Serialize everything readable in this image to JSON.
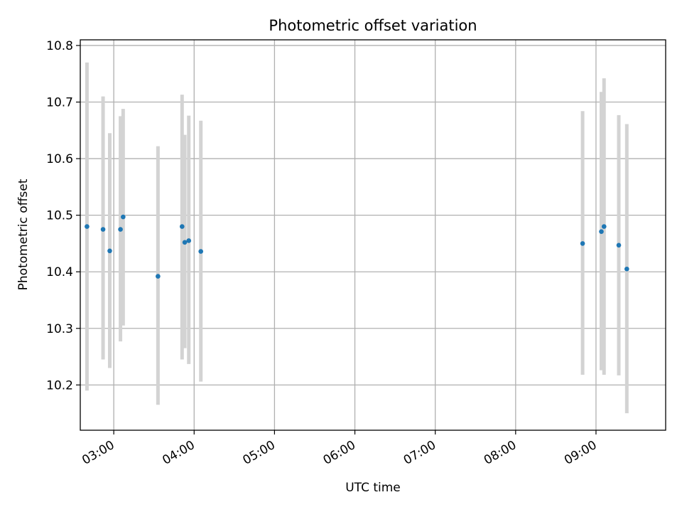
{
  "chart_data": {
    "type": "scatter",
    "title": "Photometric offset variation",
    "xlabel": "UTC time",
    "ylabel": "Photometric offset",
    "x_tick_labels": [
      "03:00",
      "04:00",
      "05:00",
      "06:00",
      "07:00",
      "08:00",
      "09:00"
    ],
    "y_tick_labels": [
      "10.2",
      "10.3",
      "10.4",
      "10.5",
      "10.6",
      "10.7",
      "10.8"
    ],
    "xlim": [
      "02:35",
      "09:52"
    ],
    "ylim": [
      10.12,
      10.81
    ],
    "grid": true,
    "marker_color": "#1f77b4",
    "errorbar_color": "#d3d3d3",
    "points": [
      {
        "time": "02:40",
        "value": 10.48,
        "lower": 10.19,
        "upper": 10.77
      },
      {
        "time": "02:52",
        "value": 10.475,
        "lower": 10.245,
        "upper": 10.71
      },
      {
        "time": "02:57",
        "value": 10.437,
        "lower": 10.23,
        "upper": 10.645
      },
      {
        "time": "03:05",
        "value": 10.475,
        "lower": 10.277,
        "upper": 10.675
      },
      {
        "time": "03:07",
        "value": 10.497,
        "lower": 10.305,
        "upper": 10.688
      },
      {
        "time": "03:33",
        "value": 10.392,
        "lower": 10.165,
        "upper": 10.622
      },
      {
        "time": "03:51",
        "value": 10.48,
        "lower": 10.245,
        "upper": 10.713
      },
      {
        "time": "03:53",
        "value": 10.452,
        "lower": 10.265,
        "upper": 10.642
      },
      {
        "time": "03:56",
        "value": 10.455,
        "lower": 10.237,
        "upper": 10.676
      },
      {
        "time": "04:05",
        "value": 10.436,
        "lower": 10.206,
        "upper": 10.667
      },
      {
        "time": "08:50",
        "value": 10.45,
        "lower": 10.218,
        "upper": 10.684
      },
      {
        "time": "09:04",
        "value": 10.471,
        "lower": 10.226,
        "upper": 10.718
      },
      {
        "time": "09:06",
        "value": 10.48,
        "lower": 10.218,
        "upper": 10.742
      },
      {
        "time": "09:17",
        "value": 10.447,
        "lower": 10.217,
        "upper": 10.677
      },
      {
        "time": "09:23",
        "value": 10.405,
        "lower": 10.15,
        "upper": 10.661
      }
    ]
  }
}
